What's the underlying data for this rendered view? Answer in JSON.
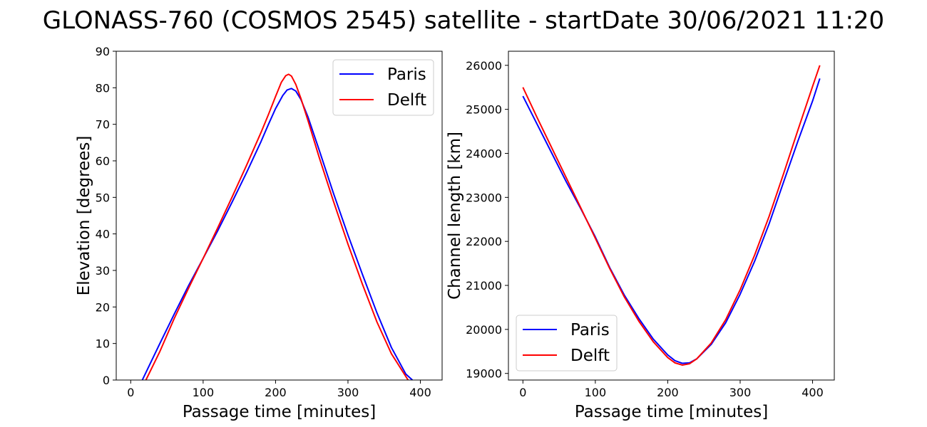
{
  "figure_title": "GLONASS-760 (COSMOS 2545) satellite - startDate 30/06/2021 11:20",
  "chart_data": [
    {
      "type": "line",
      "title": "",
      "xlabel": "Passage time [minutes]",
      "ylabel": "Elevation [degrees]",
      "xlim": [
        -20,
        430
      ],
      "ylim": [
        0,
        90
      ],
      "xticks": [
        0,
        100,
        200,
        300,
        400
      ],
      "xtick_labels": [
        "0",
        "100",
        "200",
        "300",
        "400"
      ],
      "yticks": [
        0,
        10,
        20,
        30,
        40,
        50,
        60,
        70,
        80,
        90
      ],
      "ytick_labels": [
        "0",
        "10",
        "20",
        "30",
        "40",
        "50",
        "60",
        "70",
        "80",
        "90"
      ],
      "legend_position": "upper right",
      "series": [
        {
          "name": "Paris",
          "color": "#0000ff",
          "x": [
            16,
            40,
            60,
            80,
            100,
            120,
            140,
            160,
            180,
            190,
            200,
            210,
            216,
            222,
            228,
            235,
            245,
            260,
            280,
            300,
            320,
            340,
            360,
            380,
            389
          ],
          "y": [
            0,
            9.9,
            18.0,
            25.9,
            33.3,
            40.8,
            48.7,
            56.8,
            65.3,
            69.9,
            74.3,
            77.9,
            79.4,
            79.8,
            79.1,
            76.8,
            71.9,
            63.1,
            51.1,
            39.7,
            28.9,
            18.4,
            8.9,
            1.6,
            0
          ]
        },
        {
          "name": "Delft",
          "color": "#ff0000",
          "x": [
            21,
            40,
            60,
            80,
            100,
            120,
            140,
            160,
            180,
            190,
            200,
            208,
            214,
            218,
            222,
            228,
            235,
            245,
            260,
            280,
            300,
            320,
            340,
            360,
            383
          ],
          "y": [
            0,
            7.7,
            16.8,
            25.2,
            33.3,
            41.6,
            50.1,
            58.8,
            67.8,
            72.6,
            77.6,
            81.5,
            83.3,
            83.7,
            83.2,
            80.9,
            77.1,
            70.9,
            61.1,
            48.9,
            37.2,
            26.2,
            15.9,
            7.2,
            0
          ]
        }
      ]
    },
    {
      "type": "line",
      "title": "",
      "xlabel": "Passage time [minutes]",
      "ylabel": "Channel length [km]",
      "xlim": [
        -20,
        430
      ],
      "ylim": [
        18850,
        26320
      ],
      "xticks": [
        0,
        100,
        200,
        300,
        400
      ],
      "xtick_labels": [
        "0",
        "100",
        "200",
        "300",
        "400"
      ],
      "yticks": [
        19000,
        20000,
        21000,
        22000,
        23000,
        24000,
        25000,
        26000
      ],
      "ytick_labels": [
        "19000",
        "20000",
        "21000",
        "22000",
        "23000",
        "24000",
        "25000",
        "26000"
      ],
      "legend_position": "lower left",
      "series": [
        {
          "name": "Paris",
          "color": "#0000ff",
          "x": [
            0,
            20,
            40,
            60,
            80,
            100,
            120,
            140,
            160,
            180,
            200,
            210,
            220,
            230,
            240,
            260,
            280,
            300,
            320,
            340,
            360,
            380,
            400,
            410
          ],
          "y": [
            25300,
            24650,
            24000,
            23350,
            22740,
            22100,
            21400,
            20780,
            20250,
            19780,
            19420,
            19290,
            19230,
            19240,
            19330,
            19660,
            20150,
            20800,
            21550,
            22400,
            23350,
            24290,
            25190,
            25700
          ]
        },
        {
          "name": "Delft",
          "color": "#ff0000",
          "x": [
            0,
            20,
            40,
            60,
            80,
            100,
            120,
            140,
            160,
            180,
            200,
            210,
            220,
            230,
            240,
            260,
            280,
            300,
            320,
            340,
            360,
            380,
            400,
            410
          ],
          "y": [
            25500,
            24800,
            24120,
            23440,
            22760,
            22070,
            21380,
            20740,
            20190,
            19720,
            19360,
            19240,
            19190,
            19220,
            19330,
            19690,
            20220,
            20900,
            21690,
            22570,
            23540,
            24540,
            25520,
            26000
          ]
        }
      ]
    }
  ]
}
